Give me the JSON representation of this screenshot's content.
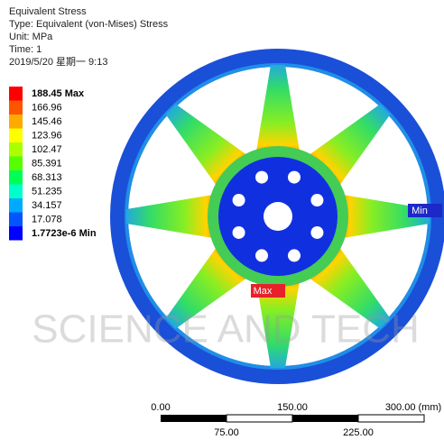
{
  "header": {
    "title": "Equivalent Stress",
    "type": "Type: Equivalent (von-Mises) Stress",
    "unit": "Unit: MPa",
    "time": "Time: 1",
    "date": "2019/5/20 星期一 9:13"
  },
  "legend": {
    "items": [
      {
        "label": "188.45 Max",
        "color": "#ff0000"
      },
      {
        "label": "166.96",
        "color": "#ff5500"
      },
      {
        "label": "145.46",
        "color": "#ffaa00"
      },
      {
        "label": "123.96",
        "color": "#ffff00"
      },
      {
        "label": "102.47",
        "color": "#aaff00"
      },
      {
        "label": "85.391",
        "color": "#55ff00"
      },
      {
        "label": "68.313",
        "color": "#00ff55"
      },
      {
        "label": "51.235",
        "color": "#00ffcc"
      },
      {
        "label": "34.157",
        "color": "#00aaff"
      },
      {
        "label": "17.078",
        "color": "#0055ff"
      },
      {
        "label": "1.7723e-6 Min",
        "color": "#0000ff"
      }
    ]
  },
  "markers": {
    "max": "Max",
    "min": "Min"
  },
  "scale_bar": {
    "top": [
      "0.00",
      "150.00",
      "300.00 (mm)"
    ],
    "bottom": [
      "75.00",
      "225.00"
    ]
  },
  "watermark": "SCIENCE AND TECH"
}
